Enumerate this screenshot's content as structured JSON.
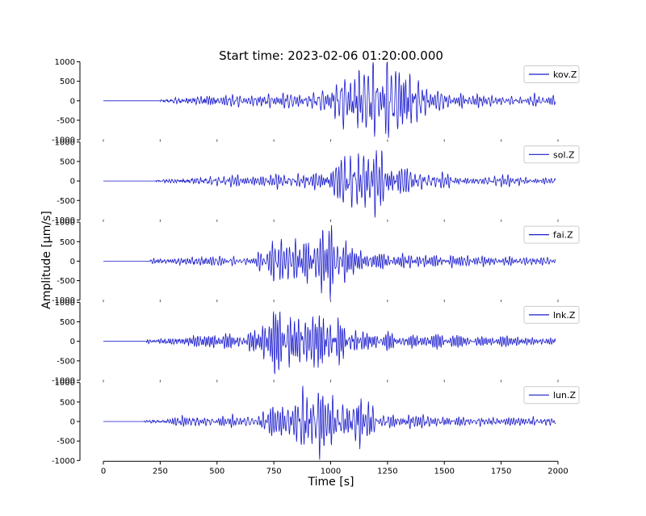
{
  "chart_data": {
    "type": "line",
    "title": "Start time: 2023-02-06 01:20:00.000",
    "xlabel": "Time [s]",
    "ylabel": "Amplitude [μm/s]",
    "xlim": [
      0,
      2000
    ],
    "ylim": [
      -1000,
      1000
    ],
    "x_ticks": [
      0,
      250,
      500,
      750,
      1000,
      1250,
      1500,
      1750,
      2000
    ],
    "y_ticks": [
      -1000,
      -500,
      0,
      500,
      1000
    ],
    "legend_position": "top-right",
    "grid": false,
    "series_color": "#1a1acc",
    "series": [
      {
        "name": "kov.Z",
        "onset_s": 250,
        "peak_time_s": 1220,
        "peak_amplitude": 950
      },
      {
        "name": "sol.Z",
        "onset_s": 230,
        "peak_time_s": 1150,
        "peak_amplitude": 750
      },
      {
        "name": "fai.Z",
        "onset_s": 200,
        "peak_time_s": 920,
        "peak_amplitude": 900
      },
      {
        "name": "lnk.Z",
        "onset_s": 190,
        "peak_time_s": 880,
        "peak_amplitude": 950
      },
      {
        "name": "lun.Z",
        "onset_s": 180,
        "peak_time_s": 960,
        "peak_amplitude": 850
      }
    ]
  }
}
